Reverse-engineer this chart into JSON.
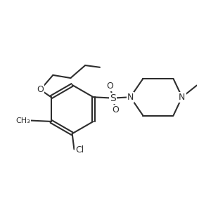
{
  "background_color": "#ffffff",
  "line_color": "#2d2d2d",
  "bond_width": 1.5,
  "font_size": 9,
  "figsize": [
    2.83,
    2.89
  ],
  "dpi": 100,
  "xlim": [
    0,
    10
  ],
  "ylim": [
    0,
    10
  ]
}
